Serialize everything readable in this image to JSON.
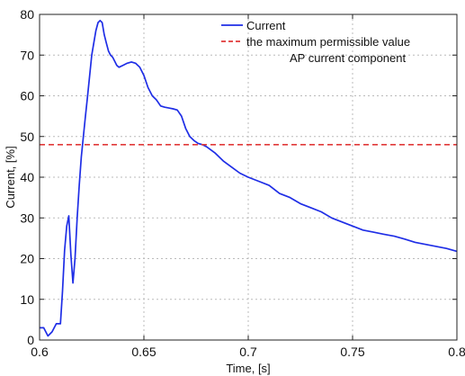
{
  "chart_data": {
    "type": "line",
    "xlabel": "Time, [s]",
    "ylabel": "Current, [%]",
    "xlim": [
      0.6,
      0.8
    ],
    "ylim": [
      0,
      80
    ],
    "grid": true,
    "legend_position": "top-right",
    "x_ticks": [
      {
        "value": 0.6,
        "label": "0.6"
      },
      {
        "value": 0.65,
        "label": "0.65"
      },
      {
        "value": 0.7,
        "label": "0.7"
      },
      {
        "value": 0.75,
        "label": "0.75"
      },
      {
        "value": 0.8,
        "label": "0.8"
      }
    ],
    "y_ticks": [
      {
        "value": 0,
        "label": "0"
      },
      {
        "value": 10,
        "label": "10"
      },
      {
        "value": 20,
        "label": "20"
      },
      {
        "value": 30,
        "label": "30"
      },
      {
        "value": 40,
        "label": "40"
      },
      {
        "value": 50,
        "label": "50"
      },
      {
        "value": 60,
        "label": "60"
      },
      {
        "value": 70,
        "label": "70"
      },
      {
        "value": 80,
        "label": "80"
      }
    ],
    "series": [
      {
        "name": "Current",
        "color": "#1f2ee6",
        "style": "solid",
        "x": [
          0.6,
          0.602,
          0.604,
          0.606,
          0.608,
          0.61,
          0.611,
          0.612,
          0.613,
          0.614,
          0.615,
          0.616,
          0.617,
          0.618,
          0.619,
          0.62,
          0.621,
          0.622,
          0.623,
          0.624,
          0.625,
          0.626,
          0.627,
          0.628,
          0.629,
          0.63,
          0.631,
          0.632,
          0.633,
          0.634,
          0.635,
          0.636,
          0.637,
          0.638,
          0.64,
          0.642,
          0.644,
          0.646,
          0.648,
          0.65,
          0.652,
          0.654,
          0.656,
          0.658,
          0.66,
          0.662,
          0.664,
          0.666,
          0.668,
          0.67,
          0.672,
          0.674,
          0.676,
          0.678,
          0.68,
          0.684,
          0.688,
          0.692,
          0.696,
          0.7,
          0.705,
          0.71,
          0.715,
          0.72,
          0.725,
          0.73,
          0.735,
          0.74,
          0.745,
          0.75,
          0.755,
          0.76,
          0.765,
          0.77,
          0.775,
          0.78,
          0.785,
          0.79,
          0.795,
          0.8
        ],
        "y": [
          3,
          3,
          1,
          2,
          4,
          4,
          12,
          22,
          28,
          30.5,
          21,
          14,
          20,
          30,
          38,
          45,
          50,
          55,
          60,
          65,
          70,
          73,
          76,
          78,
          78.5,
          78,
          75,
          73,
          71,
          70,
          69.5,
          68.5,
          67.5,
          67,
          67.5,
          68,
          68.3,
          68,
          67,
          65,
          62,
          60,
          59,
          57.5,
          57.2,
          57,
          56.8,
          56.5,
          55,
          52,
          50,
          49,
          48.3,
          48,
          47.5,
          46,
          44,
          42.5,
          41,
          40,
          39,
          38,
          36,
          35,
          33.5,
          32.5,
          31.5,
          30,
          29,
          28,
          27,
          26.5,
          26,
          25.5,
          24.8,
          24,
          23.5,
          23,
          22.5,
          21.8
        ]
      },
      {
        "name": "the maximum permissible value",
        "color": "#e03a3a",
        "style": "dashed",
        "x": [
          0.6,
          0.8
        ],
        "y": [
          48,
          48
        ]
      }
    ],
    "legend": [
      {
        "label": "Current",
        "color": "#1f2ee6",
        "style": "solid"
      },
      {
        "label": "the maximum permissible value",
        "color": "#e03a3a",
        "style": "dashed"
      },
      {
        "label": "AP current component",
        "color": "",
        "style": "none"
      }
    ]
  }
}
